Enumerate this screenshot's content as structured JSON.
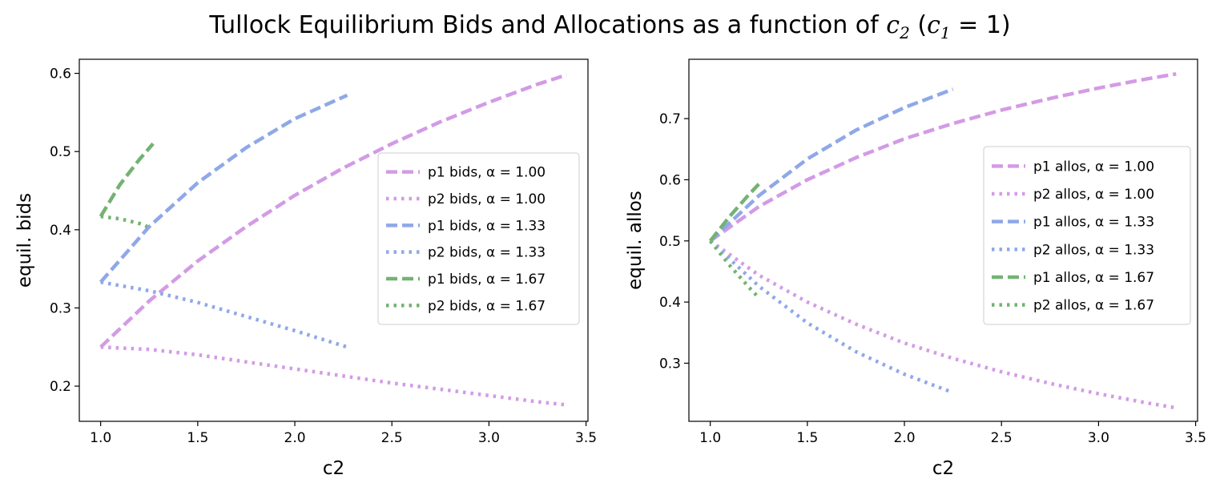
{
  "figure": {
    "title_prefix": "Tullock Equilibrium Bids and Allocations as a function of",
    "title_var": "c",
    "title_var_sub": "2",
    "title_cond_var": "c",
    "title_cond_sub": "1",
    "title_cond_value": " = 1"
  },
  "colors": {
    "alpha_1.00": "#d39be6",
    "alpha_1.33": "#8fa8e8",
    "alpha_1.67": "#74b274"
  },
  "chart_data": [
    {
      "type": "line",
      "xlabel": "c2",
      "ylabel": "equil. bids",
      "xlim": [
        0.89,
        3.51
      ],
      "ylim": [
        0.155,
        0.618
      ],
      "xticks": [
        1.0,
        1.5,
        2.0,
        2.5,
        3.0,
        3.5
      ],
      "xtick_labels": [
        "1.0",
        "1.5",
        "2.0",
        "2.5",
        "3.0",
        "3.5"
      ],
      "yticks": [
        0.2,
        0.3,
        0.4,
        0.5,
        0.6
      ],
      "ytick_labels": [
        "0.2",
        "0.3",
        "0.4",
        "0.5",
        "0.6"
      ],
      "legend_position": "center-right",
      "series": [
        {
          "name": "p1 bids, α = 1.00",
          "color": "#d39be6",
          "style": "dashed",
          "x": [
            1.0,
            1.25,
            1.5,
            1.75,
            2.0,
            2.25,
            2.5,
            2.75,
            3.0,
            3.25,
            3.4
          ],
          "y": [
            0.25,
            0.309,
            0.36,
            0.404,
            0.444,
            0.479,
            0.51,
            0.538,
            0.563,
            0.586,
            0.598
          ]
        },
        {
          "name": "p2 bids, α = 1.00",
          "color": "#d39be6",
          "style": "dotted",
          "x": [
            1.0,
            1.25,
            1.5,
            1.75,
            2.0,
            2.25,
            2.5,
            2.75,
            3.0,
            3.25,
            3.4
          ],
          "y": [
            0.25,
            0.247,
            0.24,
            0.231,
            0.222,
            0.213,
            0.204,
            0.196,
            0.188,
            0.18,
            0.176
          ]
        },
        {
          "name": "p1 bids, α = 1.33",
          "color": "#8fa8e8",
          "style": "dashed",
          "x": [
            1.0,
            1.25,
            1.5,
            1.75,
            2.0,
            2.27
          ],
          "y": [
            0.333,
            0.404,
            0.46,
            0.505,
            0.542,
            0.572
          ]
        },
        {
          "name": "p2 bids, α = 1.33",
          "color": "#8fa8e8",
          "style": "dotted",
          "x": [
            1.0,
            1.25,
            1.5,
            1.75,
            2.0,
            2.27
          ],
          "y": [
            0.333,
            0.322,
            0.307,
            0.289,
            0.271,
            0.25
          ]
        },
        {
          "name": "p1 bids, α = 1.67",
          "color": "#74b274",
          "style": "dashed",
          "x": [
            1.0,
            1.1,
            1.2,
            1.27
          ],
          "y": [
            0.417,
            0.458,
            0.49,
            0.51
          ]
        },
        {
          "name": "p2 bids, α = 1.67",
          "color": "#74b274",
          "style": "dotted",
          "x": [
            1.0,
            1.1,
            1.2,
            1.24
          ],
          "y": [
            0.417,
            0.414,
            0.408,
            0.404
          ]
        }
      ]
    },
    {
      "type": "line",
      "xlabel": "c2",
      "ylabel": "equil. allos",
      "xlim": [
        0.89,
        3.51
      ],
      "ylim": [
        0.205,
        0.797
      ],
      "xticks": [
        1.0,
        1.5,
        2.0,
        2.5,
        3.0,
        3.5
      ],
      "xtick_labels": [
        "1.0",
        "1.5",
        "2.0",
        "2.5",
        "3.0",
        "3.5"
      ],
      "yticks": [
        0.3,
        0.4,
        0.5,
        0.6,
        0.7
      ],
      "ytick_labels": [
        "0.3",
        "0.4",
        "0.5",
        "0.6",
        "0.7"
      ],
      "legend_position": "center-right",
      "series": [
        {
          "name": "p1 allos, α = 1.00",
          "color": "#d39be6",
          "style": "dashed",
          "x": [
            1.0,
            1.25,
            1.5,
            1.75,
            2.0,
            2.25,
            2.5,
            2.75,
            3.0,
            3.25,
            3.4
          ],
          "y": [
            0.5,
            0.556,
            0.6,
            0.636,
            0.667,
            0.692,
            0.714,
            0.733,
            0.75,
            0.765,
            0.773
          ]
        },
        {
          "name": "p2 allos, α = 1.00",
          "color": "#d39be6",
          "style": "dotted",
          "x": [
            1.0,
            1.25,
            1.5,
            1.75,
            2.0,
            2.25,
            2.5,
            2.75,
            3.0,
            3.25,
            3.4
          ],
          "y": [
            0.5,
            0.444,
            0.4,
            0.364,
            0.333,
            0.308,
            0.286,
            0.267,
            0.25,
            0.235,
            0.227
          ]
        },
        {
          "name": "p1 allos, α = 1.33",
          "color": "#8fa8e8",
          "style": "dashed",
          "x": [
            1.0,
            1.25,
            1.5,
            1.75,
            2.0,
            2.25
          ],
          "y": [
            0.5,
            0.574,
            0.634,
            0.681,
            0.718,
            0.748
          ]
        },
        {
          "name": "p2 allos, α = 1.33",
          "color": "#8fa8e8",
          "style": "dotted",
          "x": [
            1.0,
            1.25,
            1.5,
            1.75,
            2.0,
            2.25
          ],
          "y": [
            0.5,
            0.426,
            0.366,
            0.319,
            0.282,
            0.252
          ]
        },
        {
          "name": "p1 allos, α = 1.67",
          "color": "#74b274",
          "style": "dashed",
          "x": [
            1.0,
            1.1,
            1.2,
            1.25
          ],
          "y": [
            0.5,
            0.54,
            0.576,
            0.593
          ]
        },
        {
          "name": "p2 allos, α = 1.67",
          "color": "#74b274",
          "style": "dotted",
          "x": [
            1.0,
            1.1,
            1.2,
            1.25
          ],
          "y": [
            0.5,
            0.46,
            0.424,
            0.407
          ]
        }
      ]
    }
  ]
}
